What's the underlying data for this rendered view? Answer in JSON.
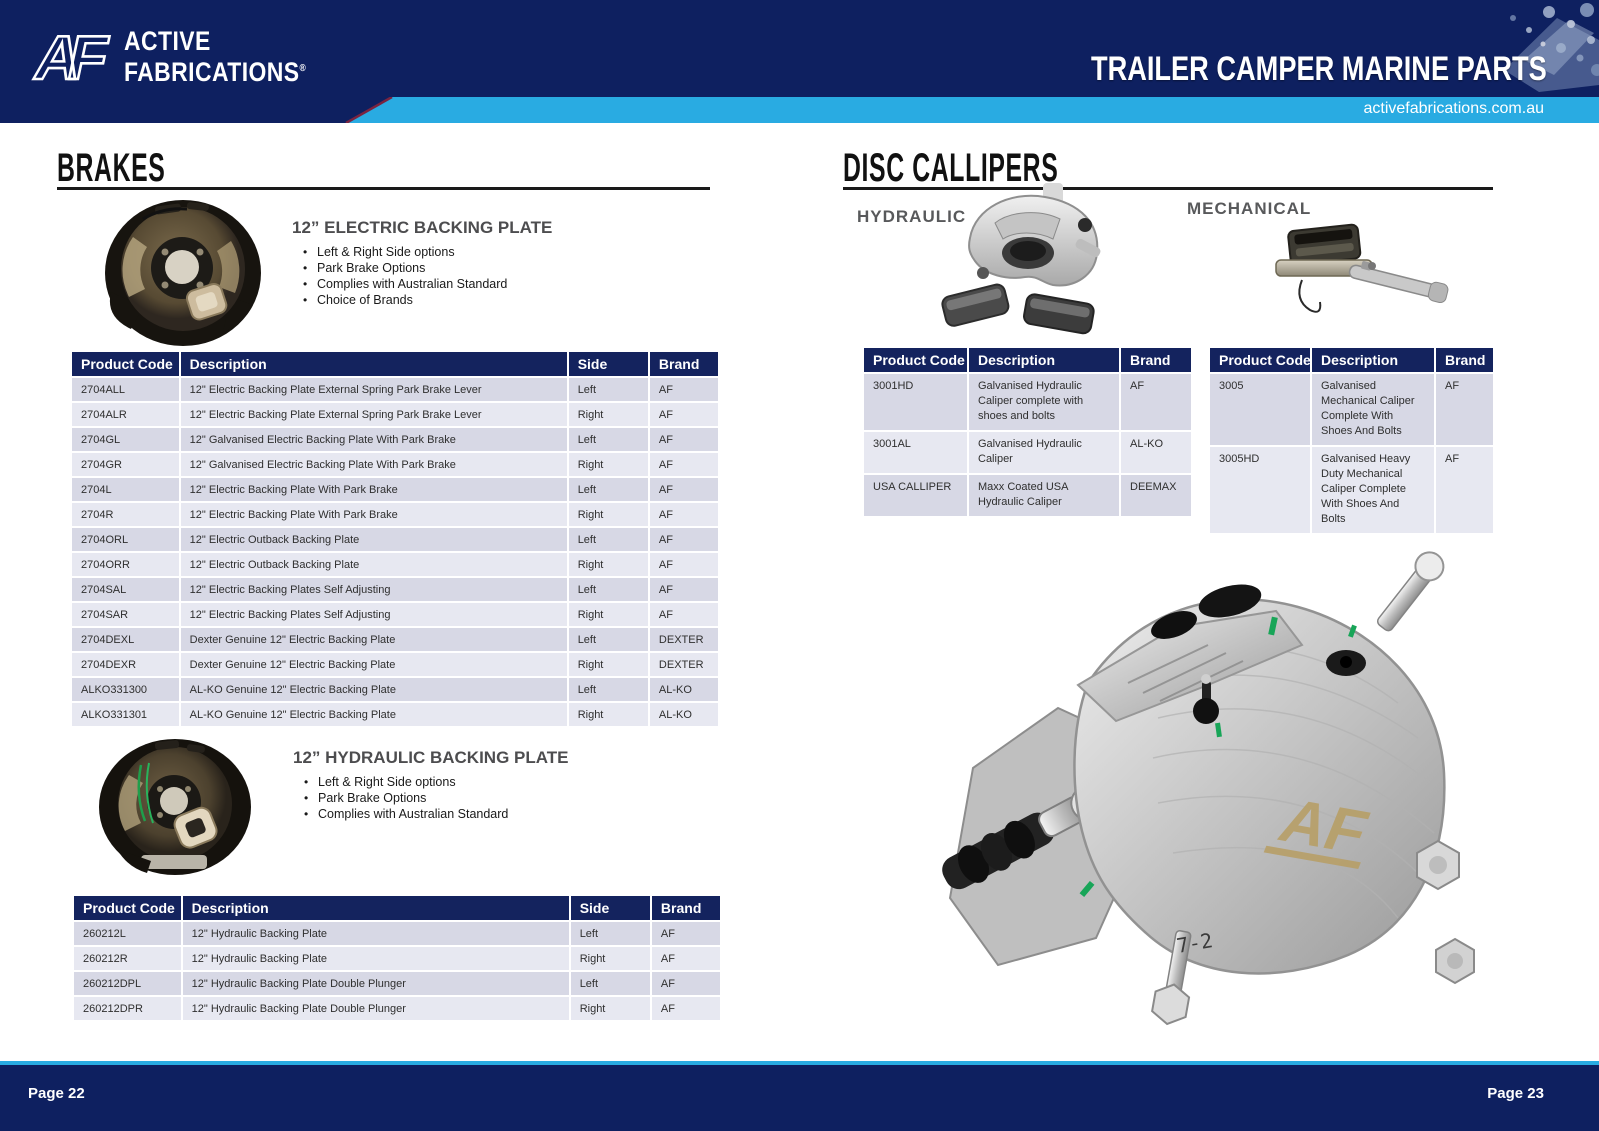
{
  "colors": {
    "navy": "#0e2060",
    "table_header_navy": "#14235e",
    "cyan": "#29abe2",
    "row_dark": "#d7d8e5",
    "row_light": "#e7e8f1",
    "heading_gray": "#4d4d4f"
  },
  "header": {
    "logo": {
      "mark_a": "A",
      "mark_f": "F",
      "line1": "ACTIVE",
      "line2": "FABRICATIONS",
      "registered": "®"
    },
    "tagline": "TRAILER CAMPER MARINE PARTS",
    "website": "activefabrications.com.au"
  },
  "left_page": {
    "title": "BRAKES",
    "page_label": "Page 22",
    "electric": {
      "title": "12” ELECTRIC BACKING PLATE",
      "bullets": [
        "Left & Right Side options",
        "Park Brake Options",
        "Complies with Australian Standard",
        "Choice of Brands"
      ],
      "table": {
        "headers": [
          "Product Code",
          "Description",
          "Side",
          "Brand"
        ],
        "rows": [
          [
            "2704ALL",
            "12\" Electric Backing Plate External Spring Park Brake Lever",
            "Left",
            "AF"
          ],
          [
            "2704ALR",
            "12\" Electric Backing Plate External Spring Park Brake Lever",
            "Right",
            "AF"
          ],
          [
            "2704GL",
            "12\" Galvanised Electric Backing Plate With Park Brake",
            "Left",
            "AF"
          ],
          [
            "2704GR",
            "12\" Galvanised Electric Backing Plate With Park Brake",
            "Right",
            "AF"
          ],
          [
            "2704L",
            "12\" Electric Backing Plate With Park Brake",
            "Left",
            "AF"
          ],
          [
            "2704R",
            "12\" Electric Backing Plate With Park Brake",
            "Right",
            "AF"
          ],
          [
            "2704ORL",
            "12\" Electric Outback Backing Plate",
            "Left",
            "AF"
          ],
          [
            "2704ORR",
            "12\" Electric Outback Backing Plate",
            "Right",
            "AF"
          ],
          [
            "2704SAL",
            "12\" Electric Backing Plates Self Adjusting",
            "Left",
            "AF"
          ],
          [
            "2704SAR",
            "12\" Electric Backing Plates Self Adjusting",
            "Right",
            "AF"
          ],
          [
            "2704DEXL",
            "Dexter Genuine 12\" Electric Backing Plate",
            "Left",
            "DEXTER"
          ],
          [
            "2704DEXR",
            "Dexter Genuine 12\" Electric Backing Plate",
            "Right",
            "DEXTER"
          ],
          [
            "ALKO331300",
            "AL-KO Genuine 12\" Electric Backing Plate",
            "Left",
            "AL-KO"
          ],
          [
            "ALKO331301",
            "AL-KO Genuine 12\" Electric Backing Plate",
            "Right",
            "AL-KO"
          ]
        ]
      }
    },
    "hydraulic": {
      "title": "12” HYDRAULIC BACKING PLATE",
      "bullets": [
        "Left & Right Side options",
        "Park Brake Options",
        "Complies with Australian Standard"
      ],
      "table": {
        "headers": [
          "Product Code",
          "Description",
          "Side",
          "Brand"
        ],
        "rows": [
          [
            "260212L",
            "12\" Hydraulic Backing Plate",
            "Left",
            "AF"
          ],
          [
            "260212R",
            "12\" Hydraulic Backing Plate",
            "Right",
            "AF"
          ],
          [
            "260212DPL",
            "12\" Hydraulic Backing Plate Double Plunger",
            "Left",
            "AF"
          ],
          [
            "260212DPR",
            "12\" Hydraulic Backing Plate Double Plunger",
            "Right",
            "AF"
          ]
        ]
      }
    }
  },
  "right_page": {
    "title": "DISC CALLIPERS",
    "page_label": "Page 23",
    "hydraulic": {
      "label": "HYDRAULIC",
      "table": {
        "headers": [
          "Product Code",
          "Description",
          "Brand"
        ],
        "rows": [
          [
            "3001HD",
            "Galvanised Hydraulic Caliper complete with shoes and bolts",
            "AF"
          ],
          [
            "3001AL",
            "Galvanised Hydraulic Caliper",
            "AL-KO"
          ],
          [
            "USA CALLIPER",
            "Maxx Coated USA Hydraulic Caliper",
            "DEEMAX"
          ]
        ]
      }
    },
    "mechanical": {
      "label": "MECHANICAL",
      "table": {
        "headers": [
          "Product Code",
          "Description",
          "Brand"
        ],
        "rows": [
          [
            "3005",
            "Galvanised Mechanical Caliper Complete With Shoes And Bolts",
            "AF"
          ],
          [
            "3005HD",
            "Galvanised Heavy Duty Mechanical Caliper Complete With Shoes And Bolts",
            "AF"
          ]
        ]
      }
    },
    "caliper_engraving": "AF",
    "caliper_marking": "7-2"
  }
}
